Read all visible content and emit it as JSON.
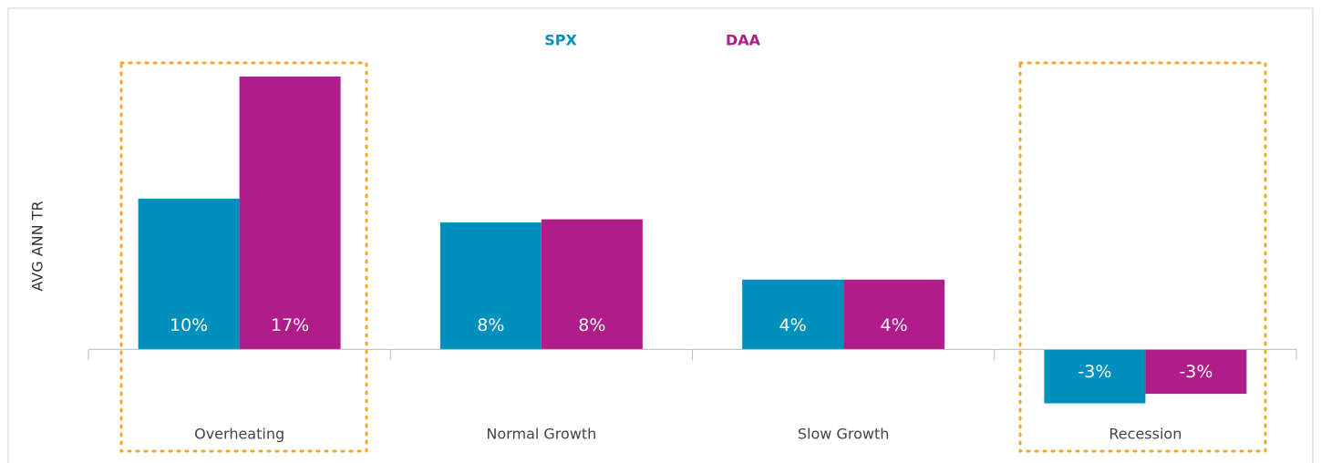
{
  "chart_data": {
    "type": "bar",
    "y_label": "AVG ANN TR",
    "categories": [
      "Overheating",
      "Normal Growth",
      "Slow Growth",
      "Recession"
    ],
    "series": [
      {
        "name": "SPX",
        "color": "#0090bd",
        "values": [
          9.5,
          8.0,
          4.4,
          -3.4
        ],
        "value_labels": [
          "10%",
          "8%",
          "4%",
          "-3%"
        ]
      },
      {
        "name": "DAA",
        "color": "#b01c8a",
        "values": [
          17.2,
          8.2,
          4.4,
          -2.8
        ],
        "value_labels": [
          "17%",
          "8%",
          "4%",
          "-3%"
        ]
      }
    ],
    "ylim": [
      -4,
      18
    ]
  }
}
